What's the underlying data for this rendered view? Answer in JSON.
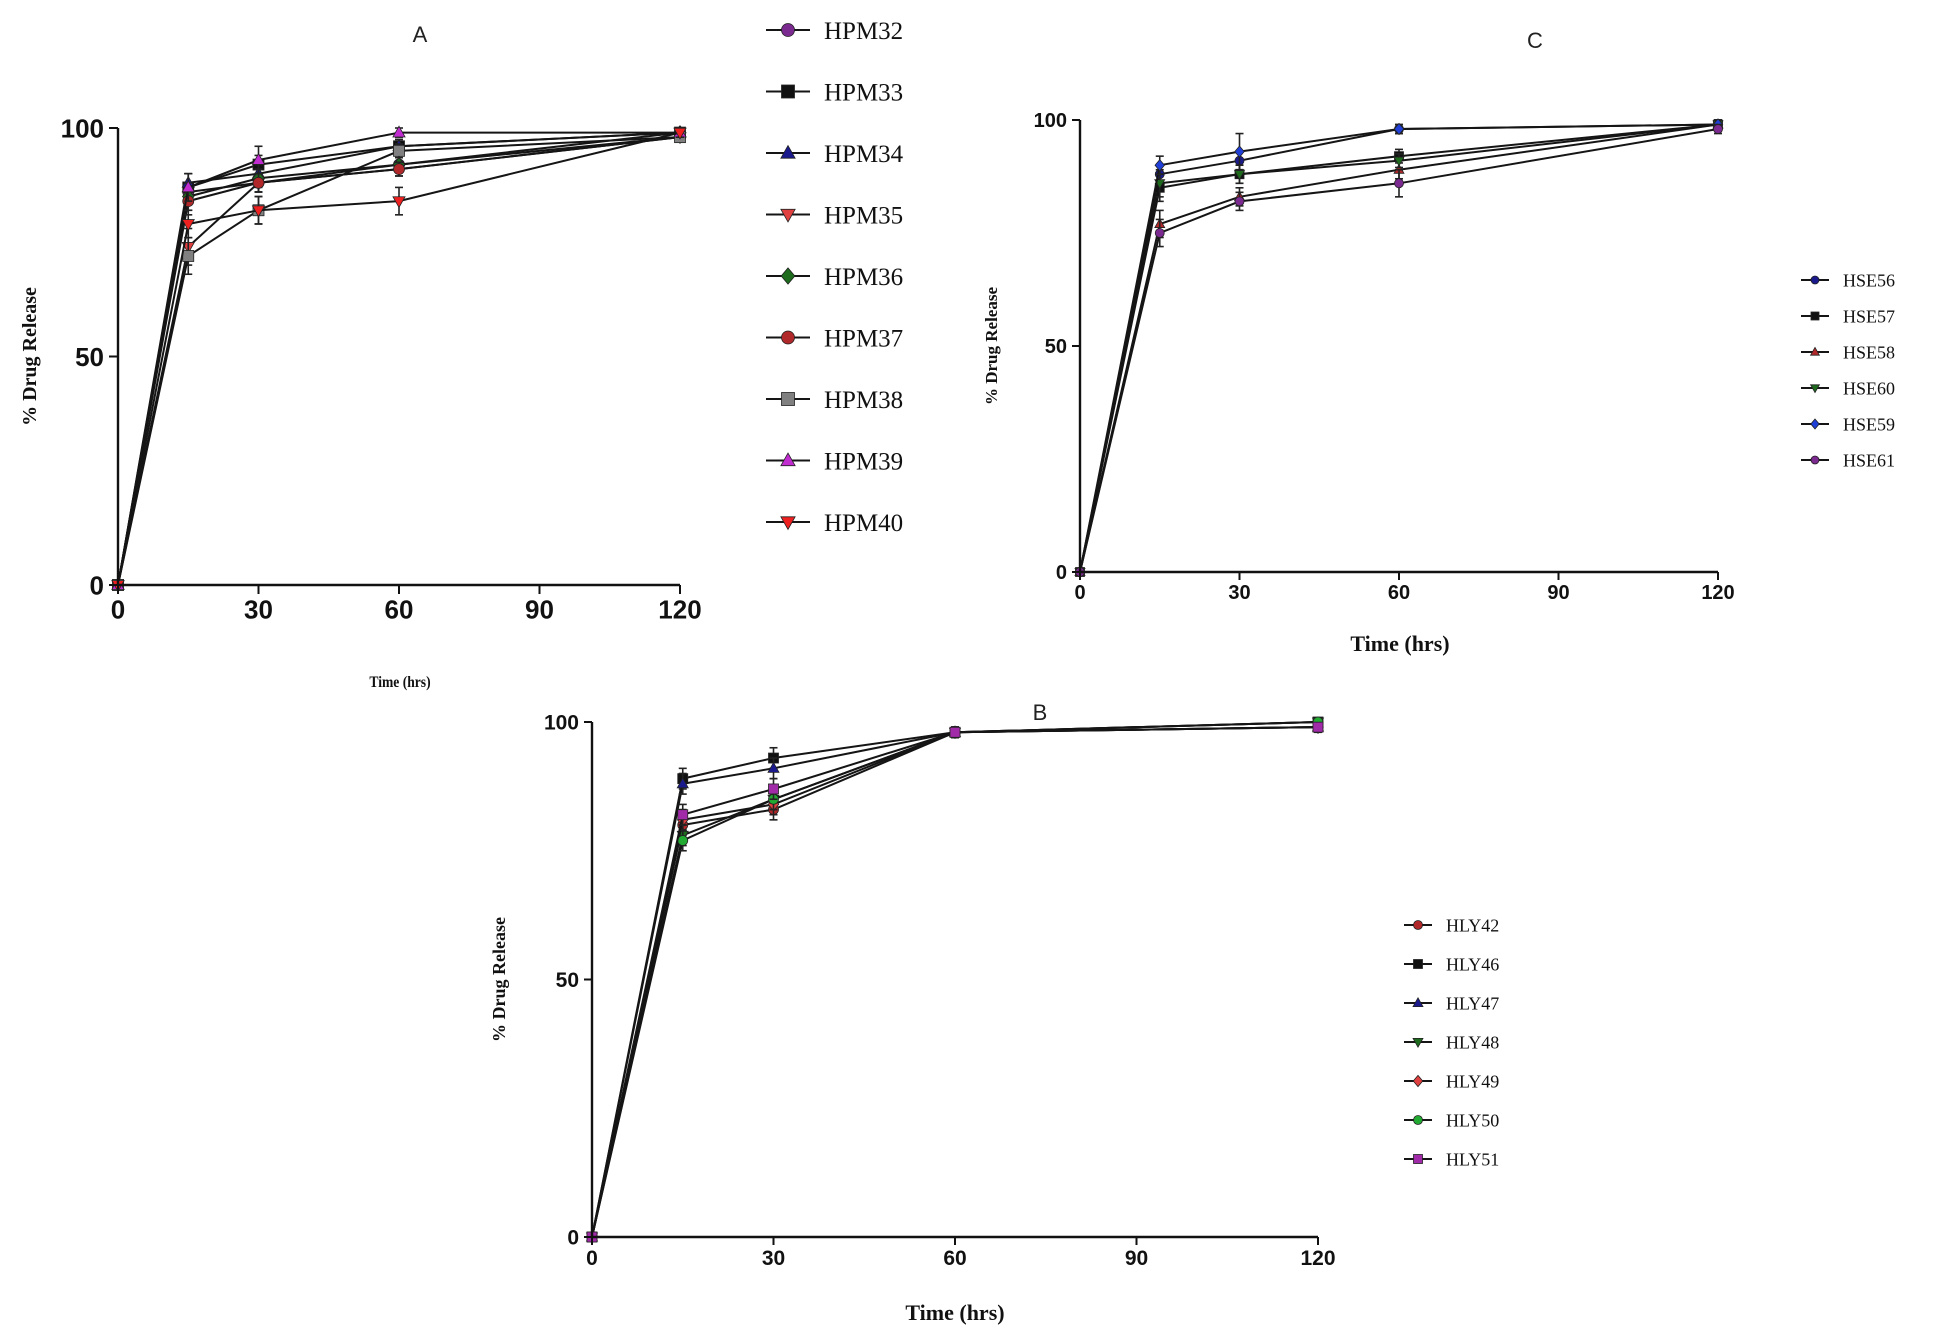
{
  "figure": {
    "description_free": true
  },
  "chart_data": [
    {
      "id": "A",
      "type": "line",
      "title": "A",
      "xlabel": "Time (hrs)",
      "ylabel": "% Drug Release",
      "xlim": [
        0,
        120
      ],
      "ylim": [
        0,
        100
      ],
      "xticks": [
        0,
        30,
        60,
        90,
        120
      ],
      "yticks": [
        0,
        50,
        100
      ],
      "x": [
        0,
        15,
        30,
        60,
        120
      ],
      "legend_position": "right",
      "series": [
        {
          "name": "HPM32",
          "color": "#7b2a8f",
          "marker": "circle",
          "values": [
            0,
            86,
            88,
            92,
            98
          ],
          "errors": [
            0,
            2,
            2,
            1.5,
            1
          ]
        },
        {
          "name": "HPM33",
          "color": "#111111",
          "marker": "square",
          "values": [
            0,
            87,
            92,
            96,
            99
          ],
          "errors": [
            0,
            3,
            2,
            1.5,
            1
          ]
        },
        {
          "name": "HPM34",
          "color": "#1a1a8c",
          "marker": "triangle-up",
          "values": [
            0,
            88,
            90,
            96,
            99
          ],
          "errors": [
            0,
            2,
            2,
            1.5,
            1
          ]
        },
        {
          "name": "HPM35",
          "color": "#e04040",
          "marker": "triangle-down",
          "values": [
            0,
            74,
            88,
            91,
            98
          ],
          "errors": [
            0,
            4,
            2,
            1.5,
            1
          ]
        },
        {
          "name": "HPM36",
          "color": "#1e6b1e",
          "marker": "diamond",
          "values": [
            0,
            85,
            89,
            92,
            99
          ],
          "errors": [
            0,
            3,
            2,
            1.5,
            1
          ]
        },
        {
          "name": "HPM37",
          "color": "#b0282a",
          "marker": "circle",
          "values": [
            0,
            84,
            88,
            91,
            98
          ],
          "errors": [
            0,
            3,
            2,
            1.5,
            1
          ]
        },
        {
          "name": "HPM38",
          "color": "#808080",
          "marker": "square",
          "values": [
            0,
            72,
            82,
            95,
            98
          ],
          "errors": [
            0,
            4,
            3,
            1.5,
            1
          ]
        },
        {
          "name": "HPM39",
          "color": "#c02cd0",
          "marker": "triangle-up",
          "values": [
            0,
            87,
            93,
            99,
            99
          ],
          "errors": [
            0,
            3,
            3,
            1,
            1
          ]
        },
        {
          "name": "HPM40",
          "color": "#ee2020",
          "marker": "triangle-down",
          "values": [
            0,
            79,
            82,
            84,
            99
          ],
          "errors": [
            0,
            3,
            3,
            3,
            1
          ]
        }
      ]
    },
    {
      "id": "C",
      "type": "line",
      "title": "C",
      "xlabel": "Time (hrs)",
      "ylabel": "% Drug Release",
      "xlim": [
        0,
        120
      ],
      "ylim": [
        0,
        100
      ],
      "xticks": [
        0,
        30,
        60,
        90,
        120
      ],
      "yticks": [
        0,
        50,
        100
      ],
      "x": [
        0,
        15,
        30,
        60,
        120
      ],
      "legend_position": "right",
      "series": [
        {
          "name": "HSE56",
          "color": "#1a1a8c",
          "marker": "circle",
          "values": [
            0,
            88,
            91,
            98,
            99
          ],
          "errors": [
            0,
            2,
            2,
            1,
            1
          ]
        },
        {
          "name": "HSE57",
          "color": "#111111",
          "marker": "square",
          "values": [
            0,
            85,
            88,
            92,
            99
          ],
          "errors": [
            0,
            3,
            2,
            1.5,
            1
          ]
        },
        {
          "name": "HSE58",
          "color": "#b0282a",
          "marker": "triangle-up",
          "values": [
            0,
            77,
            83,
            89,
            99
          ],
          "errors": [
            0,
            3,
            2,
            2,
            1
          ]
        },
        {
          "name": "HSE60",
          "color": "#1e6b1e",
          "marker": "triangle-down",
          "values": [
            0,
            86,
            88,
            91,
            99
          ],
          "errors": [
            0,
            3,
            2,
            1.5,
            1
          ]
        },
        {
          "name": "HSE59",
          "color": "#1f3fd6",
          "marker": "diamond",
          "values": [
            0,
            90,
            93,
            98,
            99
          ],
          "errors": [
            0,
            2,
            4,
            1,
            1
          ]
        },
        {
          "name": "HSE61",
          "color": "#7b2a8f",
          "marker": "circle",
          "values": [
            0,
            75,
            82,
            86,
            98
          ],
          "errors": [
            0,
            3,
            2,
            3,
            1
          ]
        }
      ]
    },
    {
      "id": "B",
      "type": "line",
      "title": "B",
      "xlabel": "Time (hrs)",
      "ylabel": "% Drug Release",
      "xlim": [
        0,
        120
      ],
      "ylim": [
        0,
        100
      ],
      "xticks": [
        0,
        30,
        60,
        90,
        120
      ],
      "yticks": [
        0,
        50,
        100
      ],
      "x": [
        0,
        15,
        30,
        60,
        120
      ],
      "legend_position": "right",
      "series": [
        {
          "name": "HLY42",
          "color": "#b0282a",
          "marker": "circle",
          "values": [
            0,
            80,
            83,
            98,
            99
          ],
          "errors": [
            0,
            2,
            2,
            1,
            1
          ]
        },
        {
          "name": "HLY46",
          "color": "#111111",
          "marker": "square",
          "values": [
            0,
            89,
            93,
            98,
            100
          ],
          "errors": [
            0,
            2,
            2,
            1,
            0.5
          ]
        },
        {
          "name": "HLY47",
          "color": "#1a1a8c",
          "marker": "triangle-up",
          "values": [
            0,
            88,
            91,
            98,
            99
          ],
          "errors": [
            0,
            2,
            2,
            1,
            0.5
          ]
        },
        {
          "name": "HLY48",
          "color": "#1e6b1e",
          "marker": "triangle-down",
          "values": [
            0,
            78,
            85,
            98,
            100
          ],
          "errors": [
            0,
            2,
            2,
            1,
            0.5
          ]
        },
        {
          "name": "HLY49",
          "color": "#e04040",
          "marker": "diamond",
          "values": [
            0,
            81,
            84,
            98,
            99
          ],
          "errors": [
            0,
            2,
            2,
            1,
            0.5
          ]
        },
        {
          "name": "HLY50",
          "color": "#22aa33",
          "marker": "circle",
          "values": [
            0,
            77,
            85,
            98,
            100
          ],
          "errors": [
            0,
            2,
            2,
            1,
            0.5
          ]
        },
        {
          "name": "HLY51",
          "color": "#a02aa8",
          "marker": "square",
          "values": [
            0,
            82,
            87,
            98,
            99
          ],
          "errors": [
            0,
            2,
            2,
            1,
            0.5
          ]
        }
      ]
    }
  ]
}
